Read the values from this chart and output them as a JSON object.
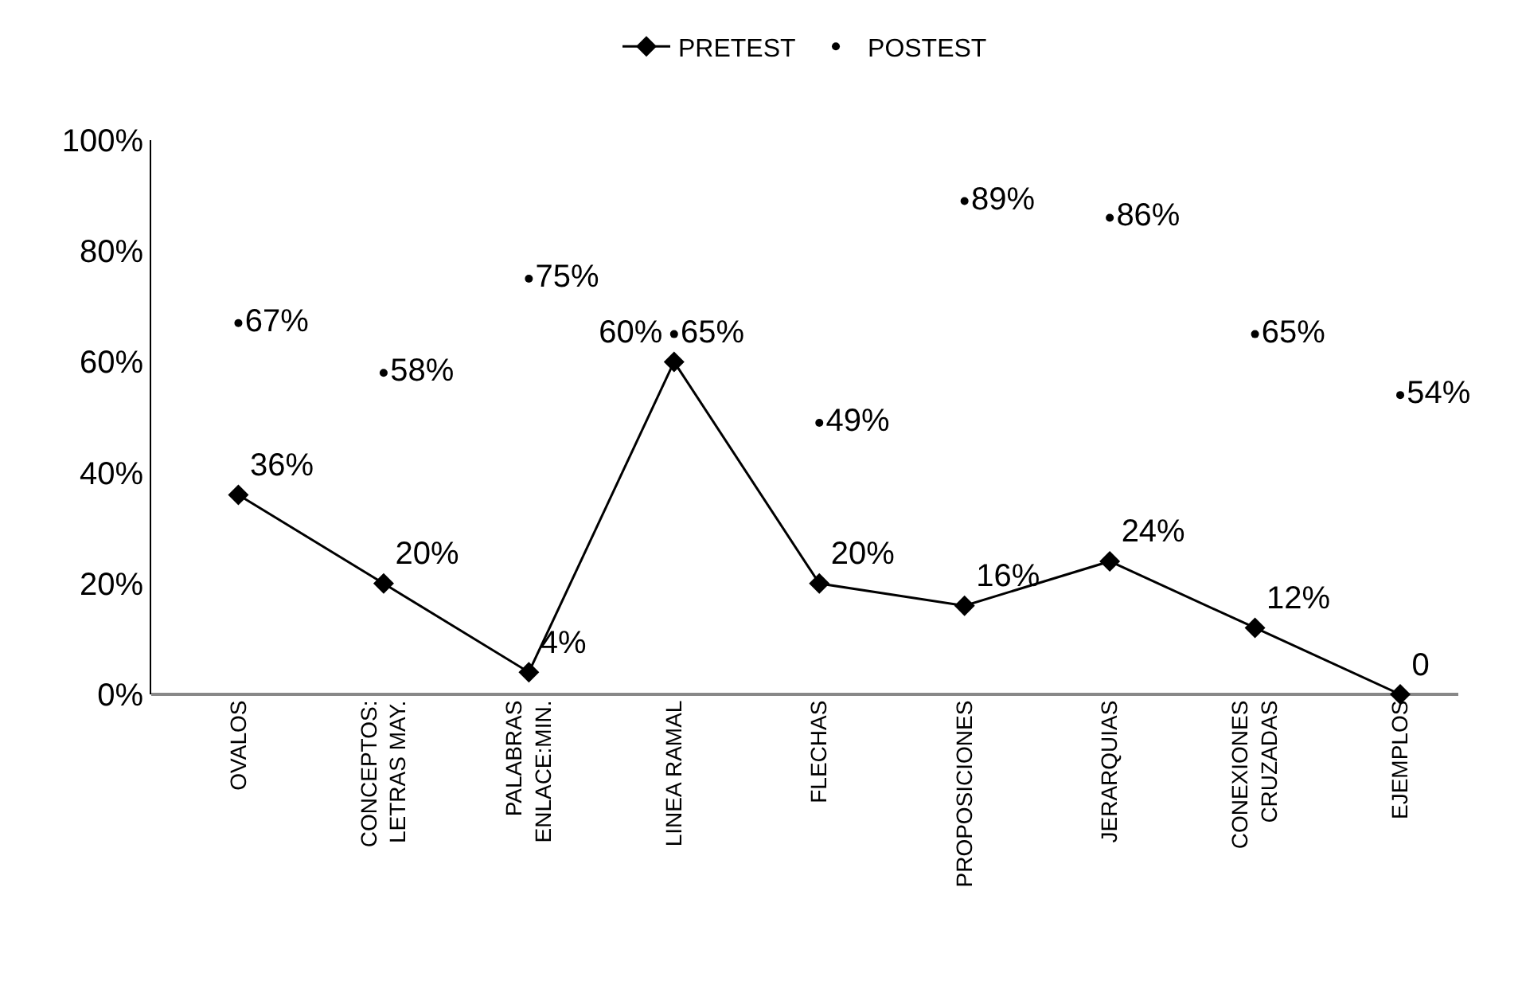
{
  "chart_data": {
    "type": "line",
    "categories": [
      "OVALOS",
      "CONCEPTOS:\nLETRAS MAY.",
      "PALABRAS\nENLACE:MIN.",
      "LINEA RAMAL",
      "FLECHAS",
      "PROPOSICIONES",
      "JERARQUIAS",
      "CONEXIONES\nCRUZADAS",
      "EJEMPLOS"
    ],
    "series": [
      {
        "name": "PRETEST",
        "color": "#000000",
        "marker": "diamond",
        "values": [
          36,
          20,
          4,
          60,
          20,
          16,
          24,
          12,
          0
        ],
        "value_labels": [
          "36%",
          "20%",
          "4%",
          "60%",
          "20%",
          "16%",
          "24%",
          "12%",
          "0"
        ]
      },
      {
        "name": "POSTEST",
        "color": "#000000",
        "type": "scatter",
        "marker": "circle",
        "values": [
          67,
          58,
          75,
          65,
          49,
          89,
          86,
          65,
          54
        ],
        "value_labels": [
          "67%",
          "58%",
          "75%",
          "65%",
          "49%",
          "89%",
          "86%",
          "65%",
          "54%"
        ]
      }
    ],
    "ylim": [
      0,
      100
    ],
    "yticks": [
      {
        "value": 0,
        "label": "0%"
      },
      {
        "value": 20,
        "label": "20%"
      },
      {
        "value": 40,
        "label": "40%"
      },
      {
        "value": 60,
        "label": "60%"
      },
      {
        "value": 80,
        "label": "80%"
      },
      {
        "value": 100,
        "label": "100%"
      }
    ],
    "legend": "top"
  }
}
